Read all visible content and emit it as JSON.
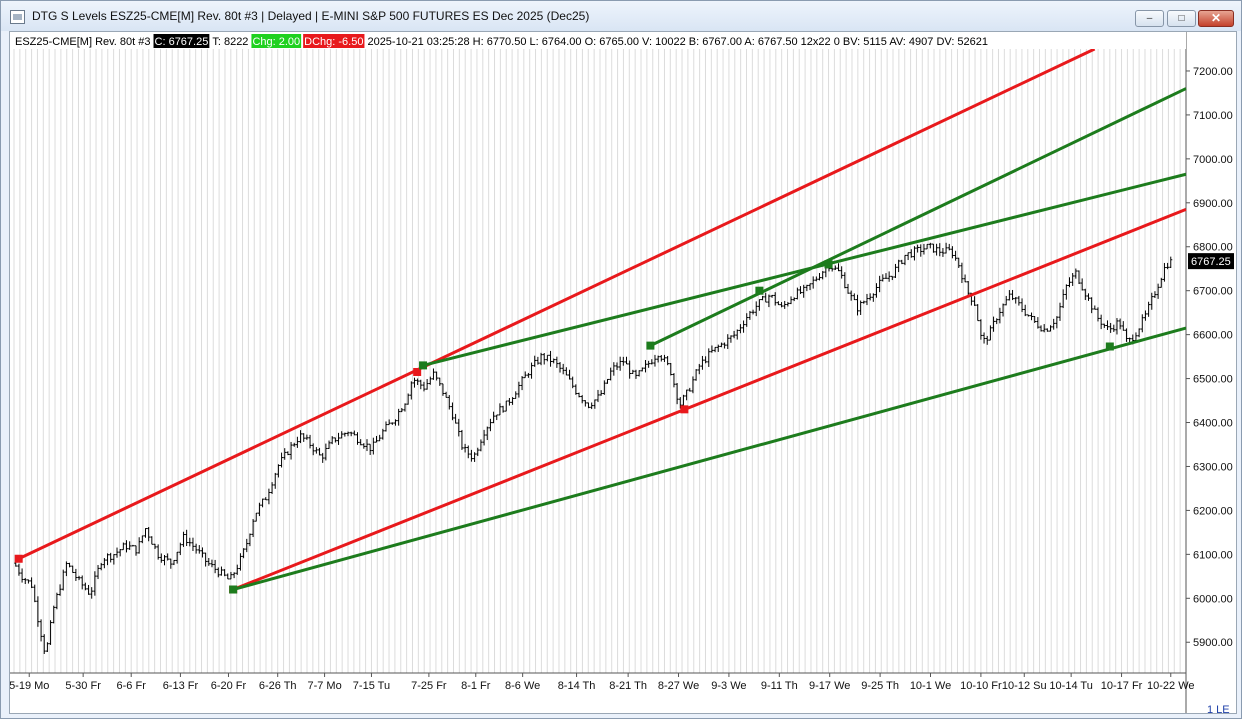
{
  "window": {
    "title": "DTG S Levels ESZ25-CME[M]  Rev. 80t #3 | Delayed | E-MINI S&P 500 FUTURES ES Dec 2025 (Dec25)",
    "minimize_glyph": "–",
    "maximize_glyph": "□",
    "close_glyph": "✕"
  },
  "info_bar": {
    "symbol": "ESZ25-CME[M]  Rev. 80t #3",
    "close": "C: 6767.25",
    "ticks": "T: 8222",
    "chg": "Chg: 2.00",
    "dchg": "DChg: -6.50",
    "rest": "2025-10-21 03:25:28 H: 6770.50 L: 6764.00 O: 6765.00 V: 10022 B: 6767.00 A: 6767.50 12x22 0 BV: 5115 AV: 4907 DV: 52621"
  },
  "bottom_right_label": "1 LE",
  "colors": {
    "red": "#e8191c",
    "green": "#1d7c1d",
    "bars": "#000000",
    "grid": "#dcdcdc"
  },
  "chart_data": {
    "type": "bar",
    "title": "",
    "xlabel": "",
    "ylabel": "",
    "x_range": [
      0,
      100
    ],
    "ylim": [
      5830,
      7250
    ],
    "y_ticks": [
      "7200.00",
      "7100.00",
      "7000.00",
      "6900.00",
      "6800.00",
      "6700.00",
      "6600.00",
      "6500.00",
      "6400.00",
      "6300.00",
      "6200.00",
      "6100.00",
      "6000.00",
      "5900.00"
    ],
    "y_tick_values": [
      7200,
      7100,
      7000,
      6900,
      6800,
      6700,
      6600,
      6500,
      6400,
      6300,
      6200,
      6100,
      6000,
      5900
    ],
    "x_labels": [
      "5-19 Mo",
      "5-30 Fr",
      "6-6 Fr",
      "6-13 Fr",
      "6-20 Fr",
      "6-26 Th",
      "7-7 Mo",
      "7-15 Tu",
      "7-25 Fr",
      "8-1 Fr",
      "8-6 We",
      "8-14 Th",
      "8-21 Th",
      "8-27 We",
      "9-3 We",
      "9-11 Th",
      "9-17 We",
      "9-25 Th",
      "10-1 We",
      "10-10 Fr",
      "10-12 Su",
      "10-14 Tu",
      "10-17 Fr",
      "10-22 We"
    ],
    "x_label_positions": [
      1.3,
      5.9,
      10.0,
      14.2,
      18.3,
      22.5,
      26.5,
      30.5,
      35.4,
      39.4,
      43.4,
      48.0,
      52.4,
      56.7,
      61.0,
      65.3,
      69.6,
      73.9,
      78.2,
      82.5,
      86.2,
      90.2,
      94.5,
      98.7
    ],
    "last_price": "6767.25",
    "last_value": 6767.25,
    "price_path": [
      [
        0,
        6080
      ],
      [
        0.7,
        6050
      ],
      [
        1.5,
        6030
      ],
      [
        2.0,
        5960
      ],
      [
        2.7,
        5870
      ],
      [
        3.4,
        5980
      ],
      [
        4.5,
        6080
      ],
      [
        5.5,
        6040
      ],
      [
        6.5,
        6010
      ],
      [
        7.5,
        6090
      ],
      [
        8.5,
        6100
      ],
      [
        9.5,
        6120
      ],
      [
        10.5,
        6110
      ],
      [
        11.2,
        6160
      ],
      [
        12.3,
        6100
      ],
      [
        13.4,
        6080
      ],
      [
        14.5,
        6140
      ],
      [
        15.6,
        6110
      ],
      [
        16.5,
        6080
      ],
      [
        17.5,
        6060
      ],
      [
        18.4,
        6040
      ],
      [
        19.2,
        6080
      ],
      [
        19.8,
        6120
      ],
      [
        20.5,
        6190
      ],
      [
        21.5,
        6230
      ],
      [
        22.5,
        6300
      ],
      [
        23.5,
        6340
      ],
      [
        24.4,
        6370
      ],
      [
        25.3,
        6350
      ],
      [
        26.2,
        6320
      ],
      [
        27.2,
        6360
      ],
      [
        28.5,
        6380
      ],
      [
        29.5,
        6360
      ],
      [
        30.5,
        6340
      ],
      [
        31.5,
        6380
      ],
      [
        32.5,
        6410
      ],
      [
        33.4,
        6450
      ],
      [
        34.0,
        6500
      ],
      [
        35.0,
        6480
      ],
      [
        35.8,
        6510
      ],
      [
        36.6,
        6470
      ],
      [
        37.4,
        6420
      ],
      [
        38.3,
        6340
      ],
      [
        39.2,
        6320
      ],
      [
        40.1,
        6380
      ],
      [
        41.0,
        6420
      ],
      [
        42.0,
        6440
      ],
      [
        43.0,
        6480
      ],
      [
        44.0,
        6520
      ],
      [
        45.0,
        6550
      ],
      [
        46.0,
        6540
      ],
      [
        47.0,
        6510
      ],
      [
        48.0,
        6470
      ],
      [
        49.0,
        6440
      ],
      [
        50.0,
        6460
      ],
      [
        51.0,
        6520
      ],
      [
        52.0,
        6540
      ],
      [
        53.0,
        6500
      ],
      [
        54.0,
        6530
      ],
      [
        55.0,
        6560
      ],
      [
        56.0,
        6520
      ],
      [
        56.8,
        6440
      ],
      [
        57.5,
        6470
      ],
      [
        58.5,
        6530
      ],
      [
        59.5,
        6560
      ],
      [
        60.5,
        6580
      ],
      [
        61.5,
        6600
      ],
      [
        62.5,
        6640
      ],
      [
        63.5,
        6670
      ],
      [
        64.5,
        6690
      ],
      [
        65.5,
        6660
      ],
      [
        66.5,
        6690
      ],
      [
        67.5,
        6700
      ],
      [
        68.5,
        6730
      ],
      [
        69.5,
        6760
      ],
      [
        70.5,
        6740
      ],
      [
        71.3,
        6690
      ],
      [
        72.0,
        6660
      ],
      [
        73.0,
        6690
      ],
      [
        74.0,
        6720
      ],
      [
        75.0,
        6740
      ],
      [
        76.0,
        6780
      ],
      [
        77.0,
        6790
      ],
      [
        78.0,
        6800
      ],
      [
        79.0,
        6790
      ],
      [
        80.0,
        6790
      ],
      [
        80.6,
        6760
      ],
      [
        81.3,
        6700
      ],
      [
        82.0,
        6670
      ],
      [
        82.6,
        6580
      ],
      [
        83.2,
        6600
      ],
      [
        84.0,
        6650
      ],
      [
        85.0,
        6690
      ],
      [
        86.0,
        6660
      ],
      [
        87.0,
        6630
      ],
      [
        88.0,
        6610
      ],
      [
        89.0,
        6640
      ],
      [
        89.8,
        6710
      ],
      [
        90.6,
        6740
      ],
      [
        91.5,
        6690
      ],
      [
        92.4,
        6640
      ],
      [
        93.4,
        6610
      ],
      [
        94.3,
        6630
      ],
      [
        95.0,
        6580
      ],
      [
        95.6,
        6600
      ],
      [
        96.5,
        6640
      ],
      [
        97.4,
        6700
      ],
      [
        98.3,
        6760
      ],
      [
        98.8,
        6767
      ]
    ],
    "trend_lines": [
      {
        "color": "red",
        "points": [
          [
            0.4,
            6090
          ],
          [
            34.4,
            6515
          ],
          [
            92.2,
            7250
          ]
        ]
      },
      {
        "color": "red",
        "points": [
          [
            18.7,
            6020
          ],
          [
            57.2,
            6430
          ],
          [
            100,
            6885
          ]
        ]
      },
      {
        "color": "green",
        "points": [
          [
            18.7,
            6020
          ],
          [
            93.5,
            6573
          ],
          [
            100,
            6615
          ]
        ]
      },
      {
        "color": "green",
        "points": [
          [
            34.9,
            6530
          ],
          [
            69.5,
            6760
          ],
          [
            100,
            6965
          ]
        ]
      },
      {
        "color": "green",
        "points": [
          [
            54.3,
            6575
          ],
          [
            63.6,
            6700
          ],
          [
            69.5,
            6760
          ],
          [
            100,
            7160
          ]
        ]
      }
    ]
  }
}
